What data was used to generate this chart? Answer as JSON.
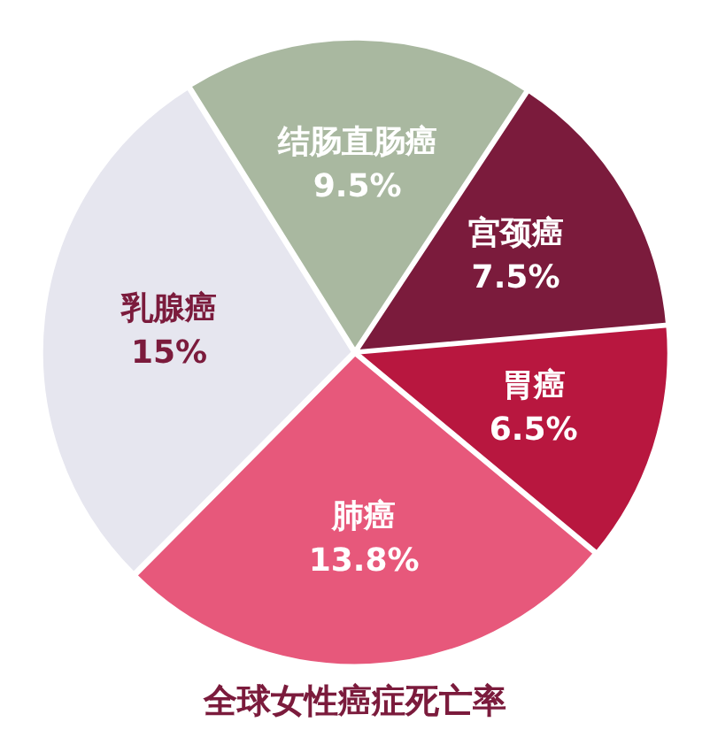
{
  "chart_data": {
    "type": "pie",
    "title": "全球女性癌症死亡率",
    "categories": [
      "结肠直肠癌",
      "宫颈癌",
      "胃癌",
      "肺癌",
      "乳腺癌"
    ],
    "values": [
      9.5,
      7.5,
      6.5,
      13.8,
      15
    ],
    "value_labels": [
      "9.5%",
      "7.5%",
      "6.5%",
      "13.8%",
      "15%"
    ],
    "colors": [
      "#a9b8a0",
      "#7b1b3c",
      "#b8173f",
      "#e7587b",
      "#e6e6ef"
    ],
    "legend": false
  }
}
